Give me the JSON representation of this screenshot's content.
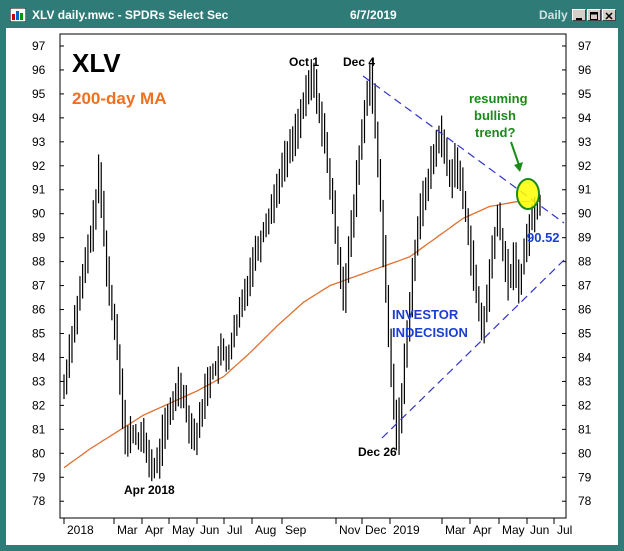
{
  "window": {
    "title": "XLV daily.mwc - SPDRs Select Sec",
    "date": "6/7/2019",
    "period": "Daily",
    "buttons": [
      "minimize-button",
      "maximize-button",
      "close-button"
    ],
    "frame_color": "#2e7b78"
  },
  "chart_data": {
    "type": "line",
    "title": "XLV",
    "subtitle": "200-day MA",
    "subtitle_color": "#f07020",
    "y_ticks": [
      78,
      79,
      80,
      81,
      82,
      83,
      84,
      85,
      86,
      87,
      88,
      89,
      90,
      91,
      92,
      93,
      94,
      95,
      96,
      97
    ],
    "ylim": [
      77.3,
      97.5
    ],
    "x_tick_labels": [
      "2018",
      "Mar",
      "Apr",
      "May",
      "Jun",
      "Jul",
      "Aug",
      "Sep",
      "Nov",
      "Dec",
      "2019",
      "Mar",
      "Apr",
      "May",
      "Jun",
      "Jul"
    ],
    "price_color": "#000000",
    "ma_color": "#e07030",
    "trendline_color": "#3333cc",
    "price_keypoints": [
      [
        0,
        82.8
      ],
      [
        2,
        84.5
      ],
      [
        5,
        86.2
      ],
      [
        8,
        88.0
      ],
      [
        11,
        89.8
      ],
      [
        13,
        91.7
      ],
      [
        15,
        89.0
      ],
      [
        17,
        86.5
      ],
      [
        19,
        85.4
      ],
      [
        21,
        83.2
      ],
      [
        23,
        80.3
      ],
      [
        25,
        80.9
      ],
      [
        27,
        80.6
      ],
      [
        29,
        80.7
      ],
      [
        31,
        80.1
      ],
      [
        33,
        79.3
      ],
      [
        35,
        79.6
      ],
      [
        37,
        80.9
      ],
      [
        39,
        81.4
      ],
      [
        41,
        82.2
      ],
      [
        43,
        83.0
      ],
      [
        45,
        82.3
      ],
      [
        47,
        81.2
      ],
      [
        49,
        80.6
      ],
      [
        51,
        81.4
      ],
      [
        53,
        82.7
      ],
      [
        55,
        83.3
      ],
      [
        57,
        83.6
      ],
      [
        59,
        84.3
      ],
      [
        61,
        83.9
      ],
      [
        63,
        84.7
      ],
      [
        65,
        85.5
      ],
      [
        67,
        86.4
      ],
      [
        69,
        87.2
      ],
      [
        71,
        88.2
      ],
      [
        73,
        88.7
      ],
      [
        75,
        89.4
      ],
      [
        77,
        90.0
      ],
      [
        79,
        90.7
      ],
      [
        81,
        91.6
      ],
      [
        83,
        92.3
      ],
      [
        85,
        92.8
      ],
      [
        87,
        93.5
      ],
      [
        89,
        94.2
      ],
      [
        91,
        95.0
      ],
      [
        93,
        95.8
      ],
      [
        95,
        94.8
      ],
      [
        97,
        93.6
      ],
      [
        99,
        92.0
      ],
      [
        101,
        90.2
      ],
      [
        103,
        88.3
      ],
      [
        105,
        86.6
      ],
      [
        107,
        88.5
      ],
      [
        109,
        90.4
      ],
      [
        111,
        92.6
      ],
      [
        113,
        94.3
      ],
      [
        115,
        96.0
      ],
      [
        117,
        93.4
      ],
      [
        119,
        90.3
      ],
      [
        121,
        86.5
      ],
      [
        123,
        83.1
      ],
      [
        125,
        80.7
      ],
      [
        127,
        82.5
      ],
      [
        129,
        85.3
      ],
      [
        131,
        87.6
      ],
      [
        133,
        89.5
      ],
      [
        135,
        90.7
      ],
      [
        137,
        91.6
      ],
      [
        139,
        92.5
      ],
      [
        141,
        93.4
      ],
      [
        143,
        92.6
      ],
      [
        145,
        91.4
      ],
      [
        147,
        92.3
      ],
      [
        149,
        91.2
      ],
      [
        151,
        90.0
      ],
      [
        153,
        88.2
      ],
      [
        155,
        86.5
      ],
      [
        157,
        85.1
      ],
      [
        159,
        86.5
      ],
      [
        161,
        88.6
      ],
      [
        163,
        89.9
      ],
      [
        165,
        88.4
      ],
      [
        167,
        87.1
      ],
      [
        169,
        88.1
      ],
      [
        171,
        87.0
      ],
      [
        173,
        88.4
      ],
      [
        175,
        89.6
      ],
      [
        177,
        90.1
      ],
      [
        179,
        90.52
      ]
    ],
    "ma_keypoints": [
      [
        0,
        79.4
      ],
      [
        10,
        80.2
      ],
      [
        20,
        80.9
      ],
      [
        30,
        81.6
      ],
      [
        40,
        82.1
      ],
      [
        50,
        82.6
      ],
      [
        60,
        83.2
      ],
      [
        70,
        84.2
      ],
      [
        80,
        85.3
      ],
      [
        90,
        86.3
      ],
      [
        100,
        87.0
      ],
      [
        110,
        87.4
      ],
      [
        120,
        87.8
      ],
      [
        130,
        88.2
      ],
      [
        140,
        89.0
      ],
      [
        150,
        89.8
      ],
      [
        160,
        90.3
      ],
      [
        170,
        90.5
      ],
      [
        179,
        90.52
      ]
    ],
    "annotations": {
      "peak1_label": "Oct 1",
      "peak2_label": "Dec 4",
      "low_label": "Dec 26",
      "april_label": "Apr 2018",
      "indecision_label_1": "INVESTOR",
      "indecision_label_2": "INDECISION",
      "question_line_1": "resuming",
      "question_line_2": "bullish",
      "question_line_3": "trend?",
      "last_value": "90.52",
      "question_color": "#1a8a1a",
      "highlight_color": "#ffff00"
    }
  }
}
